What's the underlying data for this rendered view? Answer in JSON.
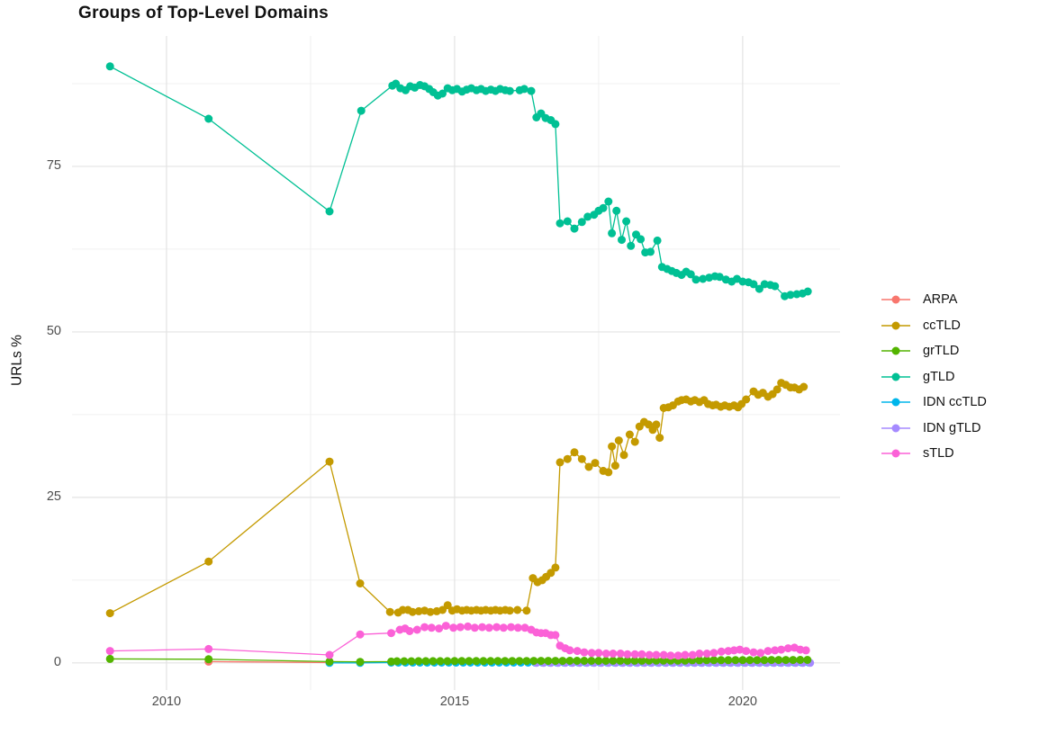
{
  "chart_data": {
    "type": "line",
    "title": "Groups of Top-Level Domains",
    "x_axis": {
      "range": [
        2008.36,
        2021.69
      ],
      "tick_values": [
        2010,
        2015,
        2020
      ],
      "tick_labels": [
        "2010",
        "2015",
        "2020"
      ],
      "minor_tick_values": [
        2012.5,
        2017.5
      ]
    },
    "y_axis": {
      "label": "URLs %",
      "range": [
        -4.1,
        94.7
      ],
      "tick_values": [
        0,
        25,
        50,
        75
      ],
      "tick_labels": [
        "0",
        "25",
        "50",
        "75"
      ],
      "minor_tick_values": [
        12.5,
        37.5,
        62.5,
        87.5
      ]
    },
    "grid": true,
    "legend_position": "right",
    "draw_order": [
      "ARPA",
      "IDN ccTLD",
      "IDN gTLD",
      "grTLD",
      "ccTLD",
      "gTLD",
      "sTLD"
    ],
    "series": [
      {
        "name": "ARPA",
        "color": "#F8766D",
        "points": [
          [
            2010.73,
            0.2
          ],
          [
            2012.83,
            0.05
          ]
        ]
      },
      {
        "name": "ccTLD",
        "color": "#C49A00",
        "points": [
          [
            2009.02,
            7.5
          ],
          [
            2010.73,
            15.3
          ],
          [
            2012.83,
            30.4
          ],
          [
            2013.36,
            12.0
          ],
          [
            2013.88,
            7.7
          ],
          [
            2014.02,
            7.6
          ],
          [
            2014.1,
            8.0
          ],
          [
            2014.19,
            8.0
          ],
          [
            2014.27,
            7.7
          ],
          [
            2014.38,
            7.8
          ],
          [
            2014.48,
            7.9
          ],
          [
            2014.58,
            7.7
          ],
          [
            2014.69,
            7.8
          ],
          [
            2014.79,
            8.0
          ],
          [
            2014.88,
            8.7
          ],
          [
            2014.96,
            7.9
          ],
          [
            2015.04,
            8.1
          ],
          [
            2015.13,
            7.9
          ],
          [
            2015.21,
            8.0
          ],
          [
            2015.29,
            7.9
          ],
          [
            2015.38,
            8.0
          ],
          [
            2015.46,
            7.9
          ],
          [
            2015.54,
            8.0
          ],
          [
            2015.63,
            7.9
          ],
          [
            2015.71,
            8.0
          ],
          [
            2015.79,
            7.9
          ],
          [
            2015.88,
            8.0
          ],
          [
            2015.96,
            7.9
          ],
          [
            2016.09,
            8.0
          ],
          [
            2016.25,
            7.9
          ],
          [
            2016.36,
            12.8
          ],
          [
            2016.44,
            12.2
          ],
          [
            2016.52,
            12.5
          ],
          [
            2016.59,
            13.0
          ],
          [
            2016.67,
            13.6
          ],
          [
            2016.75,
            14.4
          ],
          [
            2016.83,
            30.3
          ],
          [
            2016.96,
            30.8
          ],
          [
            2017.08,
            31.8
          ],
          [
            2017.21,
            30.8
          ],
          [
            2017.33,
            29.6
          ],
          [
            2017.44,
            30.2
          ],
          [
            2017.58,
            29.0
          ],
          [
            2017.67,
            28.8
          ],
          [
            2017.73,
            32.7
          ],
          [
            2017.79,
            29.8
          ],
          [
            2017.85,
            33.6
          ],
          [
            2017.94,
            31.4
          ],
          [
            2018.04,
            34.5
          ],
          [
            2018.13,
            33.4
          ],
          [
            2018.21,
            35.7
          ],
          [
            2018.29,
            36.4
          ],
          [
            2018.37,
            36.0
          ],
          [
            2018.44,
            35.2
          ],
          [
            2018.5,
            36.0
          ],
          [
            2018.56,
            34.0
          ],
          [
            2018.63,
            38.5
          ],
          [
            2018.71,
            38.6
          ],
          [
            2018.79,
            38.9
          ],
          [
            2018.88,
            39.5
          ],
          [
            2018.94,
            39.7
          ],
          [
            2019.02,
            39.8
          ],
          [
            2019.1,
            39.5
          ],
          [
            2019.17,
            39.7
          ],
          [
            2019.25,
            39.4
          ],
          [
            2019.33,
            39.7
          ],
          [
            2019.4,
            39.1
          ],
          [
            2019.48,
            38.9
          ],
          [
            2019.54,
            39.0
          ],
          [
            2019.62,
            38.7
          ],
          [
            2019.69,
            38.9
          ],
          [
            2019.77,
            38.7
          ],
          [
            2019.85,
            38.9
          ],
          [
            2019.92,
            38.6
          ],
          [
            2019.98,
            39.1
          ],
          [
            2020.06,
            39.8
          ],
          [
            2020.19,
            41.0
          ],
          [
            2020.27,
            40.5
          ],
          [
            2020.35,
            40.8
          ],
          [
            2020.44,
            40.2
          ],
          [
            2020.52,
            40.6
          ],
          [
            2020.6,
            41.3
          ],
          [
            2020.67,
            42.3
          ],
          [
            2020.75,
            42.0
          ],
          [
            2020.83,
            41.6
          ],
          [
            2020.9,
            41.6
          ],
          [
            2020.98,
            41.3
          ],
          [
            2021.06,
            41.7
          ]
        ]
      },
      {
        "name": "grTLD",
        "color": "#53B400",
        "points": [
          [
            2009.02,
            0.6
          ],
          [
            2010.73,
            0.55
          ],
          [
            2012.83,
            0.2
          ],
          [
            2013.36,
            0.15
          ],
          [
            2013.9,
            0.2
          ]
        ],
        "runs": [
          {
            "from": 2014.0,
            "to": 2019.0,
            "step": 0.125,
            "v0": 0.25,
            "v1": 0.35
          },
          {
            "from": 2019.125,
            "to": 2021.1,
            "step": 0.125,
            "v0": 0.4,
            "v1": 0.45
          }
        ]
      },
      {
        "name": "gTLD",
        "color": "#00C094",
        "points": [
          [
            2009.02,
            90.1
          ],
          [
            2010.73,
            82.2
          ],
          [
            2012.83,
            68.2
          ],
          [
            2013.38,
            83.4
          ],
          [
            2013.92,
            87.2
          ],
          [
            2013.98,
            87.5
          ],
          [
            2014.06,
            86.8
          ],
          [
            2014.15,
            86.5
          ],
          [
            2014.23,
            87.1
          ],
          [
            2014.31,
            86.9
          ],
          [
            2014.4,
            87.3
          ],
          [
            2014.48,
            87.1
          ],
          [
            2014.56,
            86.7
          ],
          [
            2014.63,
            86.2
          ],
          [
            2014.71,
            85.7
          ],
          [
            2014.79,
            86.0
          ],
          [
            2014.88,
            86.8
          ],
          [
            2014.96,
            86.5
          ],
          [
            2015.04,
            86.7
          ],
          [
            2015.13,
            86.3
          ],
          [
            2015.21,
            86.6
          ],
          [
            2015.29,
            86.8
          ],
          [
            2015.38,
            86.5
          ],
          [
            2015.46,
            86.7
          ],
          [
            2015.54,
            86.4
          ],
          [
            2015.63,
            86.6
          ],
          [
            2015.71,
            86.4
          ],
          [
            2015.79,
            86.7
          ],
          [
            2015.88,
            86.5
          ],
          [
            2015.96,
            86.4
          ],
          [
            2016.13,
            86.5
          ],
          [
            2016.21,
            86.7
          ],
          [
            2016.33,
            86.4
          ],
          [
            2016.42,
            82.4
          ],
          [
            2016.5,
            83.0
          ],
          [
            2016.58,
            82.3
          ],
          [
            2016.67,
            82.0
          ],
          [
            2016.75,
            81.4
          ],
          [
            2016.83,
            66.4
          ],
          [
            2016.96,
            66.7
          ],
          [
            2017.08,
            65.6
          ],
          [
            2017.21,
            66.6
          ],
          [
            2017.31,
            67.4
          ],
          [
            2017.42,
            67.7
          ],
          [
            2017.5,
            68.3
          ],
          [
            2017.58,
            68.7
          ],
          [
            2017.67,
            69.7
          ],
          [
            2017.73,
            64.9
          ],
          [
            2017.81,
            68.3
          ],
          [
            2017.9,
            63.9
          ],
          [
            2017.98,
            66.7
          ],
          [
            2018.06,
            63.0
          ],
          [
            2018.15,
            64.7
          ],
          [
            2018.23,
            64.0
          ],
          [
            2018.31,
            62.0
          ],
          [
            2018.4,
            62.1
          ],
          [
            2018.52,
            63.8
          ],
          [
            2018.6,
            59.8
          ],
          [
            2018.69,
            59.5
          ],
          [
            2018.77,
            59.2
          ],
          [
            2018.85,
            58.9
          ],
          [
            2018.94,
            58.6
          ],
          [
            2019.02,
            59.1
          ],
          [
            2019.1,
            58.7
          ],
          [
            2019.19,
            57.9
          ],
          [
            2019.31,
            58.0
          ],
          [
            2019.42,
            58.2
          ],
          [
            2019.52,
            58.4
          ],
          [
            2019.6,
            58.3
          ],
          [
            2019.71,
            57.9
          ],
          [
            2019.81,
            57.6
          ],
          [
            2019.9,
            58.0
          ],
          [
            2020.0,
            57.6
          ],
          [
            2020.1,
            57.5
          ],
          [
            2020.19,
            57.2
          ],
          [
            2020.29,
            56.5
          ],
          [
            2020.38,
            57.2
          ],
          [
            2020.48,
            57.1
          ],
          [
            2020.56,
            56.9
          ],
          [
            2020.73,
            55.4
          ],
          [
            2020.83,
            55.6
          ],
          [
            2020.94,
            55.7
          ],
          [
            2021.04,
            55.8
          ],
          [
            2021.13,
            56.1
          ]
        ]
      },
      {
        "name": "IDN ccTLD",
        "color": "#00B6EB",
        "points": [
          [
            2012.83,
            0.0
          ],
          [
            2013.36,
            0.0
          ]
        ],
        "runs": [
          {
            "from": 2013.9,
            "to": 2021.12,
            "step": 0.125,
            "v0": 0.05,
            "v1": 0.05
          }
        ]
      },
      {
        "name": "IDN gTLD",
        "color": "#A58AFF",
        "points": [],
        "runs": [
          {
            "from": 2016.42,
            "to": 2021.12,
            "step": 0.125,
            "v0": 0.0,
            "v1": 0.0
          }
        ]
      },
      {
        "name": "sTLD",
        "color": "#FB61D7",
        "points": [
          [
            2009.02,
            1.8
          ],
          [
            2010.73,
            2.1
          ],
          [
            2012.83,
            1.2
          ],
          [
            2013.36,
            4.3
          ],
          [
            2013.9,
            4.5
          ],
          [
            2014.05,
            5.0
          ],
          [
            2014.14,
            5.2
          ],
          [
            2014.22,
            4.8
          ],
          [
            2014.35,
            5.0
          ],
          [
            2014.48,
            5.4
          ],
          [
            2014.6,
            5.3
          ],
          [
            2014.73,
            5.2
          ],
          [
            2014.85,
            5.6
          ],
          [
            2014.98,
            5.3
          ],
          [
            2015.1,
            5.4
          ],
          [
            2015.23,
            5.5
          ],
          [
            2015.35,
            5.3
          ],
          [
            2015.48,
            5.4
          ],
          [
            2015.6,
            5.3
          ],
          [
            2015.73,
            5.4
          ],
          [
            2015.85,
            5.3
          ],
          [
            2015.98,
            5.4
          ],
          [
            2016.1,
            5.3
          ],
          [
            2016.22,
            5.3
          ],
          [
            2016.33,
            5.0
          ],
          [
            2016.42,
            4.6
          ],
          [
            2016.5,
            4.5
          ],
          [
            2016.58,
            4.5
          ],
          [
            2016.67,
            4.2
          ],
          [
            2016.75,
            4.2
          ],
          [
            2016.83,
            2.6
          ],
          [
            2016.92,
            2.2
          ],
          [
            2017.0,
            1.9
          ],
          [
            2017.13,
            1.8
          ],
          [
            2017.25,
            1.6
          ],
          [
            2017.38,
            1.5
          ],
          [
            2017.5,
            1.5
          ],
          [
            2017.63,
            1.4
          ],
          [
            2017.75,
            1.4
          ],
          [
            2017.88,
            1.4
          ],
          [
            2018.0,
            1.3
          ],
          [
            2018.13,
            1.3
          ],
          [
            2018.25,
            1.3
          ],
          [
            2018.38,
            1.2
          ],
          [
            2018.5,
            1.2
          ],
          [
            2018.63,
            1.2
          ],
          [
            2018.75,
            1.1
          ],
          [
            2018.88,
            1.1
          ],
          [
            2019.0,
            1.2
          ],
          [
            2019.13,
            1.2
          ],
          [
            2019.25,
            1.4
          ],
          [
            2019.38,
            1.4
          ],
          [
            2019.5,
            1.5
          ],
          [
            2019.63,
            1.7
          ],
          [
            2019.75,
            1.8
          ],
          [
            2019.85,
            1.9
          ],
          [
            2019.95,
            2.0
          ],
          [
            2020.06,
            1.8
          ],
          [
            2020.19,
            1.6
          ],
          [
            2020.31,
            1.5
          ],
          [
            2020.44,
            1.8
          ],
          [
            2020.56,
            1.9
          ],
          [
            2020.67,
            2.0
          ],
          [
            2020.79,
            2.2
          ],
          [
            2020.9,
            2.3
          ],
          [
            2021.0,
            2.0
          ],
          [
            2021.1,
            1.9
          ]
        ]
      }
    ]
  },
  "colors": {
    "background": "#ffffff",
    "grid_major": "#e3e3e3",
    "grid_minor": "#f0f0f0",
    "tick_text": "#4d4d4d",
    "text": "#111111"
  }
}
